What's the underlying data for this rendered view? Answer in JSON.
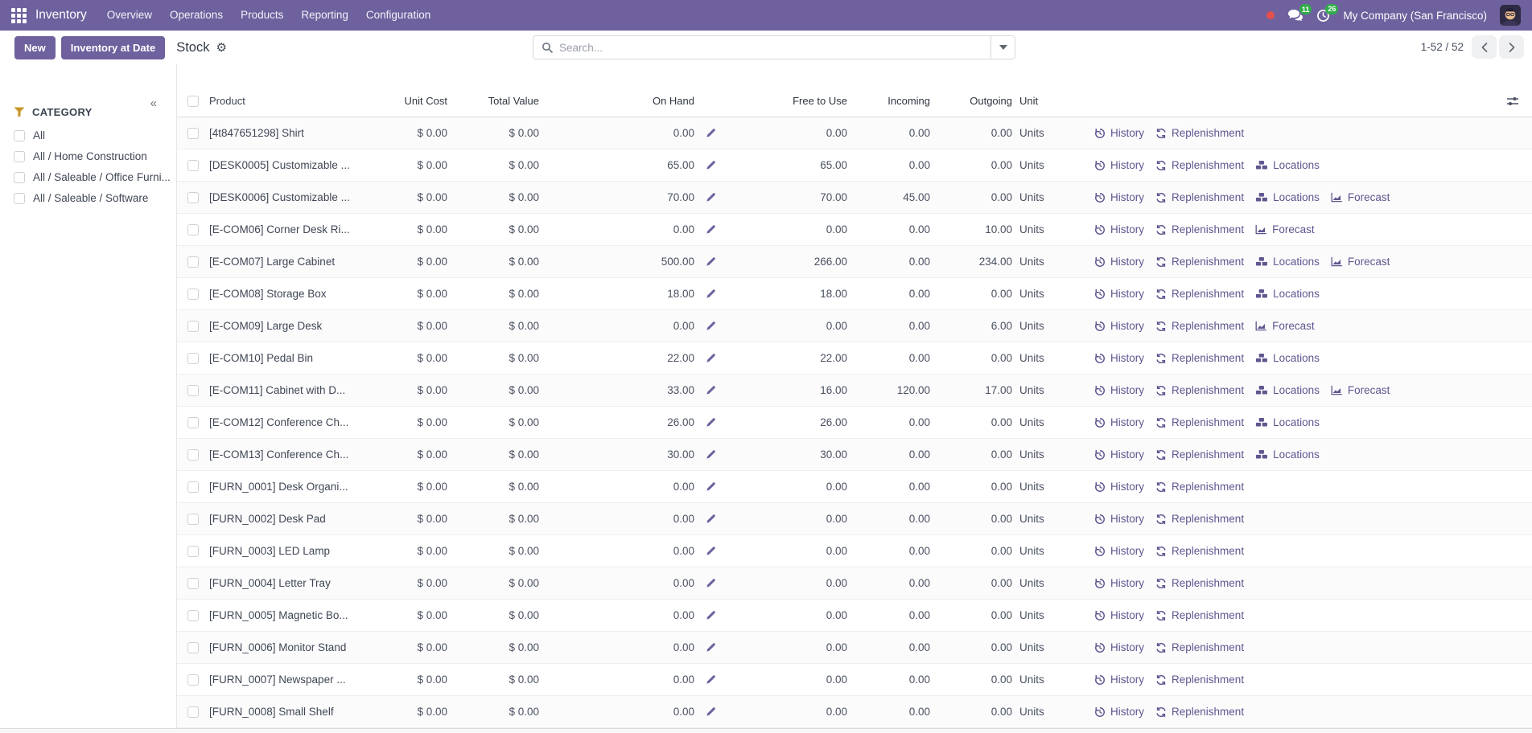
{
  "colors": {
    "primary": "#6e619e",
    "badge_green": "#2fae49",
    "notification_red": "#e4504d",
    "action_link": "#5f568f",
    "funnel_gold": "#c9972b"
  },
  "topbar": {
    "app_name": "Inventory",
    "menus": [
      "Overview",
      "Operations",
      "Products",
      "Reporting",
      "Configuration"
    ],
    "message_count": "11",
    "activity_count": "26",
    "company_name": "My Company (San Francisco)"
  },
  "control_panel": {
    "new_label": "New",
    "inventory_at_date_label": "Inventory at Date",
    "view_title": "Stock",
    "search_placeholder": "Search...",
    "pager_text": "1-52 / 52"
  },
  "sidebar": {
    "heading": "CATEGORY",
    "collapse_glyph": "«",
    "items": [
      "All",
      "All / Home Construction",
      "All / Saleable / Office Furni...",
      "All / Saleable / Software"
    ]
  },
  "table": {
    "headers": {
      "product": "Product",
      "unit_cost": "Unit Cost",
      "total_value": "Total Value",
      "on_hand": "On Hand",
      "free_to_use": "Free to Use",
      "incoming": "Incoming",
      "outgoing": "Outgoing",
      "unit": "Unit"
    },
    "actions": {
      "history": "History",
      "replenishment": "Replenishment",
      "locations": "Locations",
      "forecast": "Forecast"
    },
    "rows": [
      {
        "product": "[4t847651298] Shirt",
        "unit_cost": "$ 0.00",
        "total_value": "$ 0.00",
        "on_hand": "0.00",
        "free_to_use": "0.00",
        "incoming": "0.00",
        "outgoing": "0.00",
        "unit": "Units",
        "has_locations": false,
        "has_forecast": false
      },
      {
        "product": "[DESK0005] Customizable ...",
        "unit_cost": "$ 0.00",
        "total_value": "$ 0.00",
        "on_hand": "65.00",
        "free_to_use": "65.00",
        "incoming": "0.00",
        "outgoing": "0.00",
        "unit": "Units",
        "has_locations": true,
        "has_forecast": false
      },
      {
        "product": "[DESK0006] Customizable ...",
        "unit_cost": "$ 0.00",
        "total_value": "$ 0.00",
        "on_hand": "70.00",
        "free_to_use": "70.00",
        "incoming": "45.00",
        "outgoing": "0.00",
        "unit": "Units",
        "has_locations": true,
        "has_forecast": true
      },
      {
        "product": "[E-COM06] Corner Desk Ri...",
        "unit_cost": "$ 0.00",
        "total_value": "$ 0.00",
        "on_hand": "0.00",
        "free_to_use": "0.00",
        "incoming": "0.00",
        "outgoing": "10.00",
        "unit": "Units",
        "has_locations": false,
        "has_forecast": true
      },
      {
        "product": "[E-COM07] Large Cabinet",
        "unit_cost": "$ 0.00",
        "total_value": "$ 0.00",
        "on_hand": "500.00",
        "free_to_use": "266.00",
        "incoming": "0.00",
        "outgoing": "234.00",
        "unit": "Units",
        "has_locations": true,
        "has_forecast": true
      },
      {
        "product": "[E-COM08] Storage Box",
        "unit_cost": "$ 0.00",
        "total_value": "$ 0.00",
        "on_hand": "18.00",
        "free_to_use": "18.00",
        "incoming": "0.00",
        "outgoing": "0.00",
        "unit": "Units",
        "has_locations": true,
        "has_forecast": false
      },
      {
        "product": "[E-COM09] Large Desk",
        "unit_cost": "$ 0.00",
        "total_value": "$ 0.00",
        "on_hand": "0.00",
        "free_to_use": "0.00",
        "incoming": "0.00",
        "outgoing": "6.00",
        "unit": "Units",
        "has_locations": false,
        "has_forecast": true
      },
      {
        "product": "[E-COM10] Pedal Bin",
        "unit_cost": "$ 0.00",
        "total_value": "$ 0.00",
        "on_hand": "22.00",
        "free_to_use": "22.00",
        "incoming": "0.00",
        "outgoing": "0.00",
        "unit": "Units",
        "has_locations": true,
        "has_forecast": false
      },
      {
        "product": "[E-COM11] Cabinet with D...",
        "unit_cost": "$ 0.00",
        "total_value": "$ 0.00",
        "on_hand": "33.00",
        "free_to_use": "16.00",
        "incoming": "120.00",
        "outgoing": "17.00",
        "unit": "Units",
        "has_locations": true,
        "has_forecast": true
      },
      {
        "product": "[E-COM12] Conference Ch...",
        "unit_cost": "$ 0.00",
        "total_value": "$ 0.00",
        "on_hand": "26.00",
        "free_to_use": "26.00",
        "incoming": "0.00",
        "outgoing": "0.00",
        "unit": "Units",
        "has_locations": true,
        "has_forecast": false
      },
      {
        "product": "[E-COM13] Conference Ch...",
        "unit_cost": "$ 0.00",
        "total_value": "$ 0.00",
        "on_hand": "30.00",
        "free_to_use": "30.00",
        "incoming": "0.00",
        "outgoing": "0.00",
        "unit": "Units",
        "has_locations": true,
        "has_forecast": false
      },
      {
        "product": "[FURN_0001] Desk Organi...",
        "unit_cost": "$ 0.00",
        "total_value": "$ 0.00",
        "on_hand": "0.00",
        "free_to_use": "0.00",
        "incoming": "0.00",
        "outgoing": "0.00",
        "unit": "Units",
        "has_locations": false,
        "has_forecast": false
      },
      {
        "product": "[FURN_0002] Desk Pad",
        "unit_cost": "$ 0.00",
        "total_value": "$ 0.00",
        "on_hand": "0.00",
        "free_to_use": "0.00",
        "incoming": "0.00",
        "outgoing": "0.00",
        "unit": "Units",
        "has_locations": false,
        "has_forecast": false
      },
      {
        "product": "[FURN_0003] LED Lamp",
        "unit_cost": "$ 0.00",
        "total_value": "$ 0.00",
        "on_hand": "0.00",
        "free_to_use": "0.00",
        "incoming": "0.00",
        "outgoing": "0.00",
        "unit": "Units",
        "has_locations": false,
        "has_forecast": false
      },
      {
        "product": "[FURN_0004] Letter Tray",
        "unit_cost": "$ 0.00",
        "total_value": "$ 0.00",
        "on_hand": "0.00",
        "free_to_use": "0.00",
        "incoming": "0.00",
        "outgoing": "0.00",
        "unit": "Units",
        "has_locations": false,
        "has_forecast": false
      },
      {
        "product": "[FURN_0005] Magnetic Bo...",
        "unit_cost": "$ 0.00",
        "total_value": "$ 0.00",
        "on_hand": "0.00",
        "free_to_use": "0.00",
        "incoming": "0.00",
        "outgoing": "0.00",
        "unit": "Units",
        "has_locations": false,
        "has_forecast": false
      },
      {
        "product": "[FURN_0006] Monitor Stand",
        "unit_cost": "$ 0.00",
        "total_value": "$ 0.00",
        "on_hand": "0.00",
        "free_to_use": "0.00",
        "incoming": "0.00",
        "outgoing": "0.00",
        "unit": "Units",
        "has_locations": false,
        "has_forecast": false
      },
      {
        "product": "[FURN_0007] Newspaper ...",
        "unit_cost": "$ 0.00",
        "total_value": "$ 0.00",
        "on_hand": "0.00",
        "free_to_use": "0.00",
        "incoming": "0.00",
        "outgoing": "0.00",
        "unit": "Units",
        "has_locations": false,
        "has_forecast": false
      },
      {
        "product": "[FURN_0008] Small Shelf",
        "unit_cost": "$ 0.00",
        "total_value": "$ 0.00",
        "on_hand": "0.00",
        "free_to_use": "0.00",
        "incoming": "0.00",
        "outgoing": "0.00",
        "unit": "Units",
        "has_locations": false,
        "has_forecast": false
      }
    ]
  }
}
